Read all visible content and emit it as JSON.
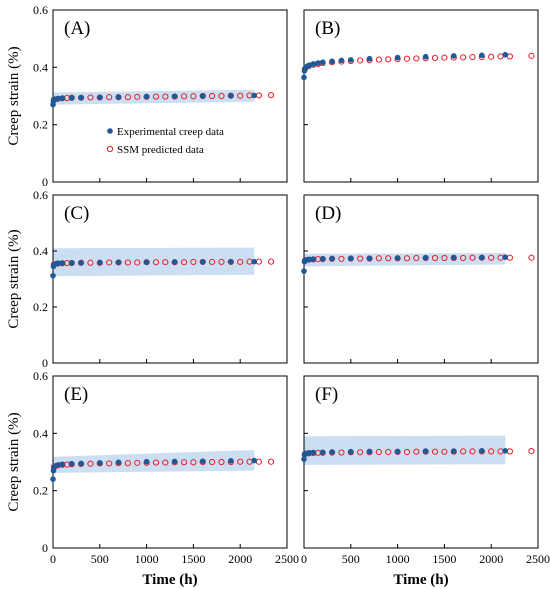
{
  "chart_data": {
    "type": "scatter",
    "ylabel": "Creep strain (%)",
    "xlabel": "Time (h)",
    "xlim": [
      0,
      2500
    ],
    "ylim": [
      0,
      0.6
    ],
    "xticks": [
      0,
      500,
      1000,
      1500,
      2000,
      2500
    ],
    "yticks": [
      0,
      0.2,
      0.4,
      0.6
    ],
    "ytick_labels": [
      "0",
      "0.2",
      "0.4",
      "0.6"
    ],
    "colors": {
      "experimental": "#1f5a96",
      "predicted": "#e8202a",
      "band": "#b9d3ee"
    },
    "legend": {
      "placement": "center-left of panel A",
      "entries": [
        {
          "key": "experimental",
          "label": "Experimental creep data",
          "marker": "filled-circle"
        },
        {
          "key": "predicted",
          "label": "SSM predicted data",
          "marker": "open-circle"
        }
      ]
    },
    "panels": [
      {
        "label": "(A)",
        "band": {
          "x": [
            0,
            2150
          ],
          "low": [
            0.27,
            0.28
          ],
          "high": [
            0.312,
            0.322
          ]
        },
        "experimental": {
          "x": [
            0,
            5,
            10,
            20,
            40,
            60,
            100,
            200,
            300,
            500,
            700,
            1000,
            1300,
            1600,
            1900,
            2150
          ],
          "y": [
            0.27,
            0.283,
            0.287,
            0.289,
            0.29,
            0.291,
            0.292,
            0.293,
            0.294,
            0.295,
            0.296,
            0.298,
            0.299,
            0.3,
            0.301,
            0.302
          ]
        },
        "predicted": {
          "x": [
            10,
            50,
            100,
            150,
            200,
            300,
            400,
            500,
            600,
            700,
            800,
            900,
            1000,
            1100,
            1200,
            1300,
            1400,
            1500,
            1600,
            1700,
            1800,
            1900,
            2000,
            2100,
            2200,
            2330
          ],
          "y": [
            0.287,
            0.29,
            0.292,
            0.293,
            0.294,
            0.294,
            0.295,
            0.295,
            0.296,
            0.296,
            0.296,
            0.297,
            0.297,
            0.298,
            0.298,
            0.298,
            0.299,
            0.299,
            0.3,
            0.3,
            0.3,
            0.301,
            0.301,
            0.302,
            0.302,
            0.303
          ]
        }
      },
      {
        "label": "(B)",
        "band": null,
        "experimental": {
          "x": [
            0,
            5,
            10,
            20,
            40,
            60,
            100,
            150,
            200,
            300,
            400,
            500,
            700,
            1000,
            1300,
            1600,
            1900,
            2150
          ],
          "y": [
            0.365,
            0.388,
            0.395,
            0.4,
            0.405,
            0.408,
            0.412,
            0.415,
            0.418,
            0.421,
            0.424,
            0.426,
            0.43,
            0.434,
            0.437,
            0.44,
            0.442,
            0.444
          ]
        },
        "predicted": {
          "x": [
            10,
            50,
            100,
            150,
            200,
            300,
            400,
            500,
            600,
            700,
            800,
            900,
            1000,
            1100,
            1200,
            1300,
            1400,
            1500,
            1600,
            1700,
            1800,
            1900,
            2000,
            2100,
            2200,
            2430
          ],
          "y": [
            0.394,
            0.404,
            0.409,
            0.412,
            0.415,
            0.418,
            0.42,
            0.422,
            0.424,
            0.425,
            0.427,
            0.428,
            0.429,
            0.43,
            0.431,
            0.432,
            0.433,
            0.434,
            0.434,
            0.435,
            0.436,
            0.436,
            0.437,
            0.438,
            0.438,
            0.44
          ]
        }
      },
      {
        "label": "(C)",
        "band": {
          "x": [
            0,
            2150
          ],
          "low": [
            0.31,
            0.315
          ],
          "high": [
            0.41,
            0.412
          ]
        },
        "experimental": {
          "x": [
            0,
            5,
            10,
            20,
            40,
            60,
            100,
            200,
            300,
            500,
            700,
            1000,
            1300,
            1600,
            1900,
            2150
          ],
          "y": [
            0.312,
            0.345,
            0.35,
            0.353,
            0.355,
            0.356,
            0.357,
            0.358,
            0.358,
            0.359,
            0.36,
            0.36,
            0.361,
            0.361,
            0.362,
            0.362
          ]
        },
        "predicted": {
          "x": [
            10,
            50,
            100,
            150,
            200,
            300,
            400,
            500,
            600,
            700,
            800,
            900,
            1000,
            1100,
            1200,
            1300,
            1400,
            1500,
            1600,
            1700,
            1800,
            1900,
            2000,
            2100,
            2200,
            2330
          ],
          "y": [
            0.352,
            0.355,
            0.356,
            0.357,
            0.357,
            0.358,
            0.358,
            0.358,
            0.359,
            0.359,
            0.359,
            0.359,
            0.36,
            0.36,
            0.36,
            0.36,
            0.36,
            0.361,
            0.361,
            0.361,
            0.361,
            0.361,
            0.361,
            0.362,
            0.362,
            0.362
          ]
        }
      },
      {
        "label": "(D)",
        "band": {
          "x": [
            0,
            2150
          ],
          "low": [
            0.345,
            0.352
          ],
          "high": [
            0.39,
            0.393
          ]
        },
        "experimental": {
          "x": [
            0,
            5,
            10,
            20,
            40,
            60,
            100,
            200,
            300,
            500,
            700,
            1000,
            1300,
            1600,
            1900,
            2150
          ],
          "y": [
            0.328,
            0.362,
            0.366,
            0.368,
            0.369,
            0.37,
            0.371,
            0.372,
            0.373,
            0.374,
            0.374,
            0.375,
            0.376,
            0.377,
            0.377,
            0.378
          ]
        },
        "predicted": {
          "x": [
            10,
            50,
            100,
            150,
            200,
            300,
            400,
            500,
            600,
            700,
            800,
            900,
            1000,
            1100,
            1200,
            1300,
            1400,
            1500,
            1600,
            1700,
            1800,
            1900,
            2000,
            2100,
            2200,
            2430
          ],
          "y": [
            0.366,
            0.369,
            0.37,
            0.371,
            0.371,
            0.372,
            0.372,
            0.373,
            0.373,
            0.373,
            0.374,
            0.374,
            0.374,
            0.374,
            0.375,
            0.375,
            0.375,
            0.375,
            0.375,
            0.375,
            0.376,
            0.376,
            0.376,
            0.376,
            0.376,
            0.376
          ]
        }
      },
      {
        "label": "(E)",
        "band": {
          "x": [
            0,
            2150
          ],
          "low": [
            0.262,
            0.27
          ],
          "high": [
            0.318,
            0.342
          ]
        },
        "experimental": {
          "x": [
            0,
            5,
            10,
            20,
            40,
            60,
            100,
            200,
            300,
            500,
            700,
            1000,
            1300,
            1600,
            1900,
            2150
          ],
          "y": [
            0.24,
            0.27,
            0.28,
            0.285,
            0.288,
            0.29,
            0.292,
            0.294,
            0.295,
            0.297,
            0.299,
            0.301,
            0.302,
            0.303,
            0.304,
            0.305
          ]
        },
        "predicted": {
          "x": [
            10,
            50,
            100,
            150,
            200,
            300,
            400,
            500,
            600,
            700,
            800,
            900,
            1000,
            1100,
            1200,
            1300,
            1400,
            1500,
            1600,
            1700,
            1800,
            1900,
            2000,
            2100,
            2200,
            2330
          ],
          "y": [
            0.283,
            0.288,
            0.29,
            0.291,
            0.292,
            0.293,
            0.294,
            0.295,
            0.295,
            0.296,
            0.296,
            0.297,
            0.297,
            0.298,
            0.298,
            0.299,
            0.299,
            0.299,
            0.3,
            0.3,
            0.3,
            0.3,
            0.301,
            0.301,
            0.301,
            0.301
          ]
        }
      },
      {
        "label": "(F)",
        "band": {
          "x": [
            0,
            2150
          ],
          "low": [
            0.29,
            0.292
          ],
          "high": [
            0.39,
            0.392
          ]
        },
        "experimental": {
          "x": [
            0,
            5,
            10,
            20,
            40,
            60,
            100,
            200,
            300,
            500,
            700,
            1000,
            1300,
            1600,
            1900,
            2150
          ],
          "y": [
            0.31,
            0.325,
            0.328,
            0.33,
            0.331,
            0.332,
            0.333,
            0.334,
            0.335,
            0.336,
            0.337,
            0.337,
            0.338,
            0.338,
            0.339,
            0.339
          ]
        },
        "predicted": {
          "x": [
            10,
            50,
            100,
            150,
            200,
            300,
            400,
            500,
            600,
            700,
            800,
            900,
            1000,
            1100,
            1200,
            1300,
            1400,
            1500,
            1600,
            1700,
            1800,
            1900,
            2000,
            2100,
            2200,
            2430
          ],
          "y": [
            0.328,
            0.33,
            0.331,
            0.332,
            0.332,
            0.333,
            0.333,
            0.334,
            0.334,
            0.334,
            0.335,
            0.335,
            0.335,
            0.335,
            0.336,
            0.336,
            0.336,
            0.336,
            0.336,
            0.337,
            0.337,
            0.337,
            0.337,
            0.337,
            0.337,
            0.338
          ]
        }
      }
    ]
  }
}
